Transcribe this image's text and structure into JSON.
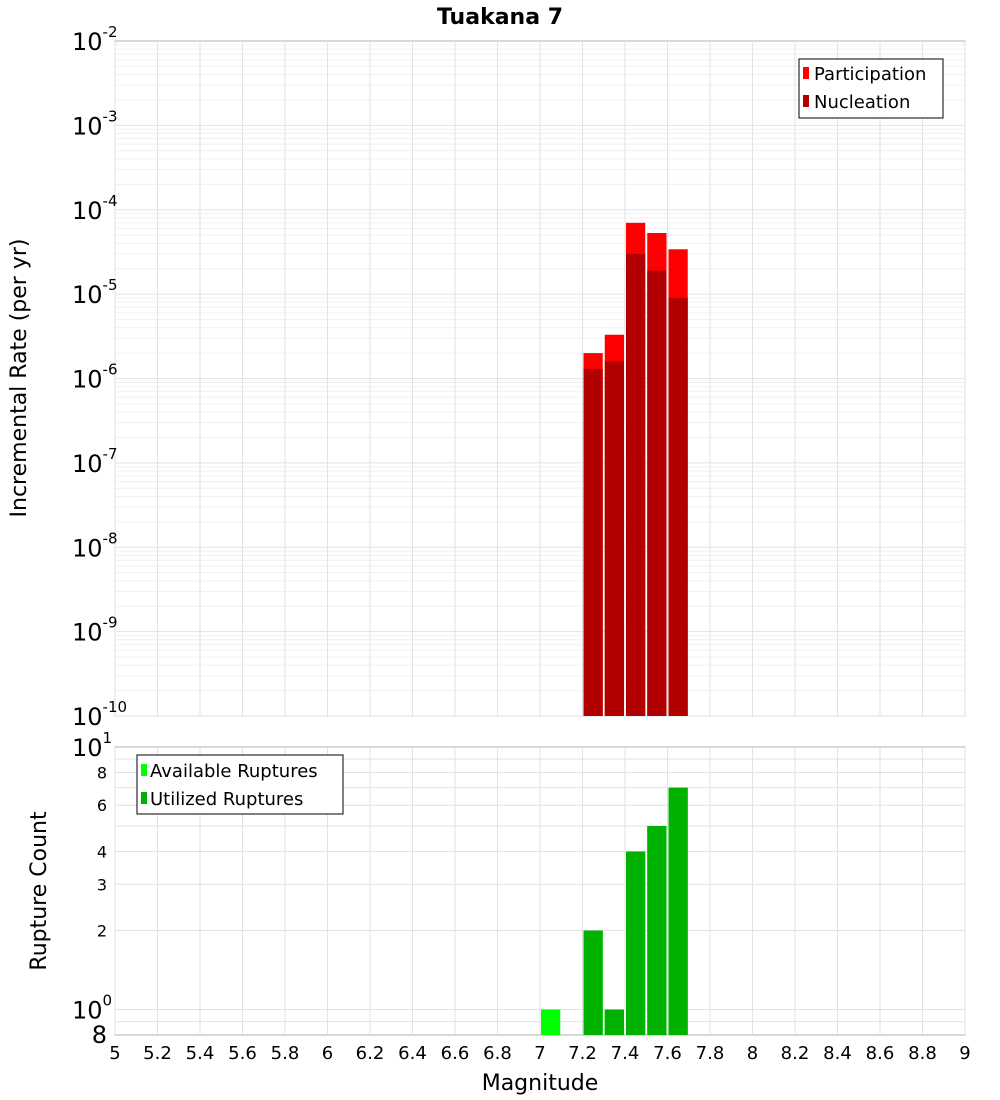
{
  "chart_data": [
    {
      "type": "bar",
      "title": "Tuakana 7",
      "xlabel": "",
      "ylabel": "Incremental Rate (per yr)",
      "y_scale": "log",
      "xlim": [
        5,
        9
      ],
      "ylim": [
        1e-10,
        0.01
      ],
      "y_tick_exponents": [
        -2,
        -3,
        -4,
        -5,
        -6,
        -7,
        -8,
        -9,
        -10
      ],
      "bar_width": 0.1,
      "legend": {
        "placement": "top-right",
        "entries": [
          "Participation",
          "Nucleation"
        ]
      },
      "series": [
        {
          "name": "Participation",
          "color": "#ff0000",
          "x": [
            7.25,
            7.35,
            7.45,
            7.55,
            7.65
          ],
          "values": [
            2e-06,
            3.3e-06,
            7e-05,
            5.3e-05,
            3.4e-05
          ]
        },
        {
          "name": "Nucleation",
          "color": "#b20000",
          "x": [
            7.25,
            7.35,
            7.45,
            7.55,
            7.65
          ],
          "values": [
            1.3e-06,
            1.6e-06,
            3e-05,
            1.9e-05,
            9e-06
          ]
        }
      ],
      "grid": true
    },
    {
      "type": "bar",
      "xlabel": "Magnitude",
      "ylabel": "Rupture Count",
      "y_scale": "log",
      "xlim": [
        5,
        9
      ],
      "ylim": [
        0.8,
        10
      ],
      "bar_width": 0.1,
      "y_ticks_minor": [
        {
          "value": 8,
          "label": "8"
        },
        {
          "value": 6,
          "label": "6"
        },
        {
          "value": 4,
          "label": "4"
        },
        {
          "value": 3,
          "label": "3"
        },
        {
          "value": 2,
          "label": "2"
        }
      ],
      "y_ticks_major": [
        {
          "value": 10,
          "base": "10",
          "exp": "1"
        },
        {
          "value": 1,
          "base": "10",
          "exp": "0"
        }
      ],
      "y_tick_bottom": {
        "value": 0.8,
        "label": "8"
      },
      "x_ticks": [
        {
          "value": 5,
          "label": "5"
        },
        {
          "value": 5.2,
          "label": "5.2"
        },
        {
          "value": 5.4,
          "label": "5.4"
        },
        {
          "value": 5.6,
          "label": "5.6"
        },
        {
          "value": 5.8,
          "label": "5.8"
        },
        {
          "value": 6,
          "label": "6"
        },
        {
          "value": 6.2,
          "label": "6.2"
        },
        {
          "value": 6.4,
          "label": "6.4"
        },
        {
          "value": 6.6,
          "label": "6.6"
        },
        {
          "value": 6.8,
          "label": "6.8"
        },
        {
          "value": 7,
          "label": "7"
        },
        {
          "value": 7.2,
          "label": "7.2"
        },
        {
          "value": 7.4,
          "label": "7.4"
        },
        {
          "value": 7.6,
          "label": "7.6"
        },
        {
          "value": 7.8,
          "label": "7.8"
        },
        {
          "value": 8,
          "label": "8"
        },
        {
          "value": 8.2,
          "label": "8.2"
        },
        {
          "value": 8.4,
          "label": "8.4"
        },
        {
          "value": 8.6,
          "label": "8.6"
        },
        {
          "value": 8.8,
          "label": "8.8"
        },
        {
          "value": 9,
          "label": "9"
        }
      ],
      "legend": {
        "placement": "top-left",
        "entries": [
          "Available Ruptures",
          "Utilized Ruptures"
        ]
      },
      "series": [
        {
          "name": "Available Ruptures",
          "color": "#00ff00",
          "x": [
            7.05,
            7.25,
            7.35,
            7.45,
            7.55,
            7.65
          ],
          "values": [
            1,
            2,
            1,
            4,
            5,
            7
          ]
        },
        {
          "name": "Utilized Ruptures",
          "color": "#00b200",
          "x": [
            7.25,
            7.35,
            7.45,
            7.55,
            7.65
          ],
          "values": [
            2,
            1,
            4,
            5,
            7
          ]
        }
      ],
      "grid": true
    }
  ]
}
